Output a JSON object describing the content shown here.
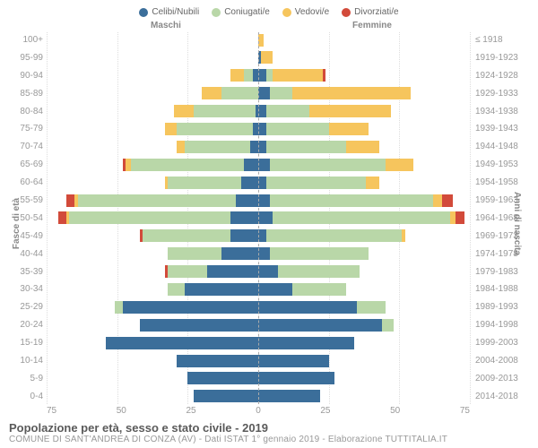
{
  "legend": [
    {
      "label": "Celibi/Nubili",
      "color": "#3b6e9a"
    },
    {
      "label": "Coniugati/e",
      "color": "#b9d7a8"
    },
    {
      "label": "Vedovi/e",
      "color": "#f6c55d"
    },
    {
      "label": "Divorziati/e",
      "color": "#d24a3a"
    }
  ],
  "colors": {
    "single": "#3b6e9a",
    "married": "#b9d7a8",
    "widowed": "#f6c55d",
    "divorced": "#d24a3a",
    "grid": "#dddddd",
    "centerline": "#aaaaaa"
  },
  "header": {
    "male": "Maschi",
    "female": "Femmine"
  },
  "axis": {
    "left_title": "Fasce di età",
    "right_title": "Anni di nascita",
    "max": 75,
    "ticks_male": [
      75,
      50,
      25,
      0
    ],
    "ticks_female": [
      25,
      50,
      75
    ]
  },
  "footer": {
    "title": "Popolazione per età, sesso e stato civile - 2019",
    "sub": "COMUNE DI SANT'ANDREA DI CONZA (AV) - Dati ISTAT 1° gennaio 2019 - Elaborazione TUTTITALIA.IT"
  },
  "rows": [
    {
      "age": "100+",
      "year": "≤ 1918",
      "m": {
        "s": 0,
        "c": 0,
        "w": 0,
        "d": 0
      },
      "f": {
        "s": 0,
        "c": 0,
        "w": 2,
        "d": 0
      }
    },
    {
      "age": "95-99",
      "year": "1919-1923",
      "m": {
        "s": 0,
        "c": 0,
        "w": 0,
        "d": 0
      },
      "f": {
        "s": 1,
        "c": 0,
        "w": 4,
        "d": 0
      }
    },
    {
      "age": "90-94",
      "year": "1924-1928",
      "m": {
        "s": 2,
        "c": 3,
        "w": 5,
        "d": 0
      },
      "f": {
        "s": 3,
        "c": 2,
        "w": 18,
        "d": 1
      }
    },
    {
      "age": "85-89",
      "year": "1929-1933",
      "m": {
        "s": 0,
        "c": 13,
        "w": 7,
        "d": 0
      },
      "f": {
        "s": 4,
        "c": 8,
        "w": 42,
        "d": 0
      }
    },
    {
      "age": "80-84",
      "year": "1934-1938",
      "m": {
        "s": 1,
        "c": 22,
        "w": 7,
        "d": 0
      },
      "f": {
        "s": 3,
        "c": 15,
        "w": 29,
        "d": 0
      }
    },
    {
      "age": "75-79",
      "year": "1939-1943",
      "m": {
        "s": 2,
        "c": 27,
        "w": 4,
        "d": 0
      },
      "f": {
        "s": 3,
        "c": 22,
        "w": 14,
        "d": 0
      }
    },
    {
      "age": "70-74",
      "year": "1944-1948",
      "m": {
        "s": 3,
        "c": 23,
        "w": 3,
        "d": 0
      },
      "f": {
        "s": 3,
        "c": 28,
        "w": 12,
        "d": 0
      }
    },
    {
      "age": "65-69",
      "year": "1949-1953",
      "m": {
        "s": 5,
        "c": 40,
        "w": 2,
        "d": 1
      },
      "f": {
        "s": 4,
        "c": 41,
        "w": 10,
        "d": 0
      }
    },
    {
      "age": "60-64",
      "year": "1954-1958",
      "m": {
        "s": 6,
        "c": 26,
        "w": 1,
        "d": 0
      },
      "f": {
        "s": 3,
        "c": 35,
        "w": 5,
        "d": 0
      }
    },
    {
      "age": "55-59",
      "year": "1959-1963",
      "m": {
        "s": 8,
        "c": 56,
        "w": 1,
        "d": 3
      },
      "f": {
        "s": 4,
        "c": 58,
        "w": 3,
        "d": 4
      }
    },
    {
      "age": "50-54",
      "year": "1964-1968",
      "m": {
        "s": 10,
        "c": 57,
        "w": 1,
        "d": 3
      },
      "f": {
        "s": 5,
        "c": 63,
        "w": 2,
        "d": 3
      }
    },
    {
      "age": "45-49",
      "year": "1969-1973",
      "m": {
        "s": 10,
        "c": 31,
        "w": 0,
        "d": 1
      },
      "f": {
        "s": 3,
        "c": 48,
        "w": 1,
        "d": 0
      }
    },
    {
      "age": "40-44",
      "year": "1974-1978",
      "m": {
        "s": 13,
        "c": 19,
        "w": 0,
        "d": 0
      },
      "f": {
        "s": 4,
        "c": 35,
        "w": 0,
        "d": 0
      }
    },
    {
      "age": "35-39",
      "year": "1979-1983",
      "m": {
        "s": 18,
        "c": 14,
        "w": 0,
        "d": 1
      },
      "f": {
        "s": 7,
        "c": 29,
        "w": 0,
        "d": 0
      }
    },
    {
      "age": "30-34",
      "year": "1984-1988",
      "m": {
        "s": 26,
        "c": 6,
        "w": 0,
        "d": 0
      },
      "f": {
        "s": 12,
        "c": 19,
        "w": 0,
        "d": 0
      }
    },
    {
      "age": "25-29",
      "year": "1989-1993",
      "m": {
        "s": 48,
        "c": 3,
        "w": 0,
        "d": 0
      },
      "f": {
        "s": 35,
        "c": 10,
        "w": 0,
        "d": 0
      }
    },
    {
      "age": "20-24",
      "year": "1994-1998",
      "m": {
        "s": 42,
        "c": 0,
        "w": 0,
        "d": 0
      },
      "f": {
        "s": 44,
        "c": 4,
        "w": 0,
        "d": 0
      }
    },
    {
      "age": "15-19",
      "year": "1999-2003",
      "m": {
        "s": 54,
        "c": 0,
        "w": 0,
        "d": 0
      },
      "f": {
        "s": 34,
        "c": 0,
        "w": 0,
        "d": 0
      }
    },
    {
      "age": "10-14",
      "year": "2004-2008",
      "m": {
        "s": 29,
        "c": 0,
        "w": 0,
        "d": 0
      },
      "f": {
        "s": 25,
        "c": 0,
        "w": 0,
        "d": 0
      }
    },
    {
      "age": "5-9",
      "year": "2009-2013",
      "m": {
        "s": 25,
        "c": 0,
        "w": 0,
        "d": 0
      },
      "f": {
        "s": 27,
        "c": 0,
        "w": 0,
        "d": 0
      }
    },
    {
      "age": "0-4",
      "year": "2014-2018",
      "m": {
        "s": 23,
        "c": 0,
        "w": 0,
        "d": 0
      },
      "f": {
        "s": 22,
        "c": 0,
        "w": 0,
        "d": 0
      }
    }
  ]
}
